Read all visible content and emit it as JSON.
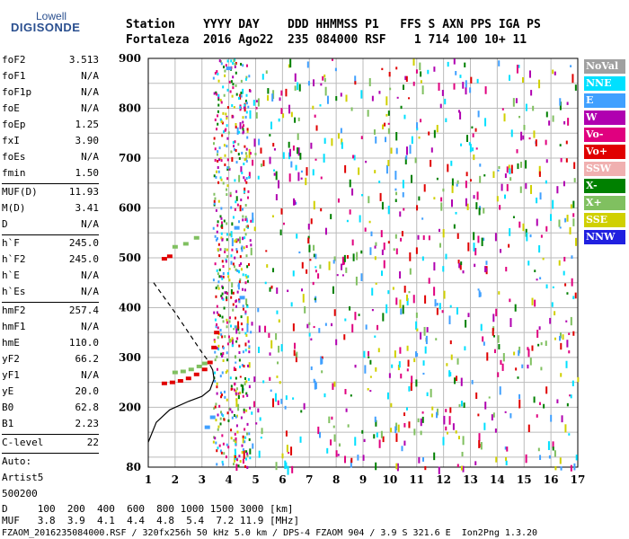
{
  "logo": {
    "line1": "Lowell",
    "line2": "DIGISONDE"
  },
  "header": {
    "line1": "Station    YYYY DAY    DDD HHMMSS P1   FFS S AXN PPS IGA PS",
    "line2": "Fortaleza  2016 Ago22  235 084000 RSF    1 714 100 10+ 11"
  },
  "params": [
    {
      "name": "foF2",
      "value": "3.513"
    },
    {
      "name": "foF1",
      "value": "N/A"
    },
    {
      "name": "foF1p",
      "value": "N/A"
    },
    {
      "name": "foE",
      "value": "N/A"
    },
    {
      "name": "foEp",
      "value": "1.25"
    },
    {
      "name": "fxI",
      "value": "3.90"
    },
    {
      "name": "foEs",
      "value": "N/A"
    },
    {
      "name": "fmin",
      "value": "1.50"
    },
    {
      "name": "MUF(D)",
      "value": "11.93",
      "sep": true
    },
    {
      "name": "M(D)",
      "value": "3.41"
    },
    {
      "name": "D",
      "value": "N/A"
    },
    {
      "name": "h`F",
      "value": "245.0",
      "sep": true
    },
    {
      "name": "h`F2",
      "value": "245.0"
    },
    {
      "name": "h`E",
      "value": "N/A"
    },
    {
      "name": "h`Es",
      "value": "N/A"
    },
    {
      "name": "hmF2",
      "value": "257.4",
      "sep": true
    },
    {
      "name": "hmF1",
      "value": "N/A"
    },
    {
      "name": "hmE",
      "value": "110.0"
    },
    {
      "name": "yF2",
      "value": "66.2"
    },
    {
      "name": "yF1",
      "value": "N/A"
    },
    {
      "name": "yE",
      "value": "20.0"
    },
    {
      "name": "B0",
      "value": "62.8"
    },
    {
      "name": "B1",
      "value": "2.23"
    },
    {
      "name": "C-level",
      "value": "22",
      "sep": true
    }
  ],
  "auto_block": {
    "line1": "Auto:",
    "line2": "Artist5",
    "line3": "500200"
  },
  "legend": [
    {
      "label": "NoVal",
      "color": "#a0a0a0"
    },
    {
      "label": "NNE",
      "color": "#00e0ff"
    },
    {
      "label": "E",
      "color": "#40a0ff"
    },
    {
      "label": "W",
      "color": "#b000b0"
    },
    {
      "label": "Vo-",
      "color": "#e0007f"
    },
    {
      "label": "Vo+",
      "color": "#e00000"
    },
    {
      "label": "SSW",
      "color": "#f0b0b0"
    },
    {
      "label": "X-",
      "color": "#008000"
    },
    {
      "label": "X+",
      "color": "#80c060"
    },
    {
      "label": "SSE",
      "color": "#d0d000"
    },
    {
      "label": "NNW",
      "color": "#2020e0"
    }
  ],
  "bottom": {
    "d_row": "D     100  200  400  600  800 1000 1500 3000 [km]",
    "muf_row": "MUF   3.8  3.9  4.1  4.4  4.8  5.4  7.2 11.9 [MHz]",
    "footer": "FZAOM_2016235084000.RSF / 320fx256h 50 kHz 5.0 km / DPS-4 FZAOM 904 / 3.9 S 321.6 E  Ion2Png 1.3.20"
  },
  "chart_data": {
    "type": "scatter",
    "title": "",
    "xlabel": "",
    "ylabel": "",
    "x_ticks": [
      1,
      2,
      3,
      4,
      5,
      6,
      7,
      8,
      9,
      10,
      11,
      12,
      13,
      14,
      15,
      16,
      17
    ],
    "y_ticks": [
      80,
      200,
      300,
      400,
      500,
      600,
      700,
      800,
      900
    ],
    "xlim": [
      1,
      17
    ],
    "ylim": [
      80,
      900
    ],
    "grid": true,
    "series": [
      {
        "name": "X+",
        "color": "#80c060",
        "points": [
          [
            2.0,
            270
          ],
          [
            2.3,
            272
          ],
          [
            2.6,
            276
          ],
          [
            2.9,
            282
          ],
          [
            3.1,
            288
          ],
          [
            2.0,
            522
          ],
          [
            2.4,
            528
          ],
          [
            2.8,
            540
          ]
        ]
      },
      {
        "name": "Vo+",
        "color": "#e00000",
        "points": [
          [
            1.6,
            248
          ],
          [
            1.9,
            250
          ],
          [
            2.2,
            253
          ],
          [
            2.5,
            258
          ],
          [
            2.8,
            266
          ],
          [
            3.1,
            276
          ],
          [
            3.3,
            290
          ],
          [
            3.45,
            320
          ],
          [
            3.55,
            350
          ],
          [
            1.6,
            498
          ],
          [
            1.8,
            503
          ]
        ]
      },
      {
        "name": "E",
        "color": "#40a0ff",
        "points": [
          [
            3.2,
            160
          ],
          [
            3.4,
            180
          ],
          [
            4.0,
            880
          ],
          [
            4.3,
            560
          ],
          [
            4.5,
            420
          ]
        ]
      }
    ],
    "traces": [
      {
        "name": "profile",
        "style": "solid",
        "points": [
          [
            1.0,
            130
          ],
          [
            1.3,
            170
          ],
          [
            1.8,
            195
          ],
          [
            2.5,
            212
          ],
          [
            3.0,
            222
          ],
          [
            3.3,
            235
          ],
          [
            3.45,
            257
          ],
          [
            3.4,
            275
          ],
          [
            3.3,
            285
          ]
        ]
      },
      {
        "name": "profile-dashed",
        "style": "dashed",
        "points": [
          [
            1.2,
            450
          ],
          [
            1.6,
            420
          ],
          [
            2.0,
            390
          ],
          [
            2.5,
            350
          ],
          [
            3.0,
            310
          ],
          [
            3.3,
            288
          ]
        ]
      }
    ]
  }
}
